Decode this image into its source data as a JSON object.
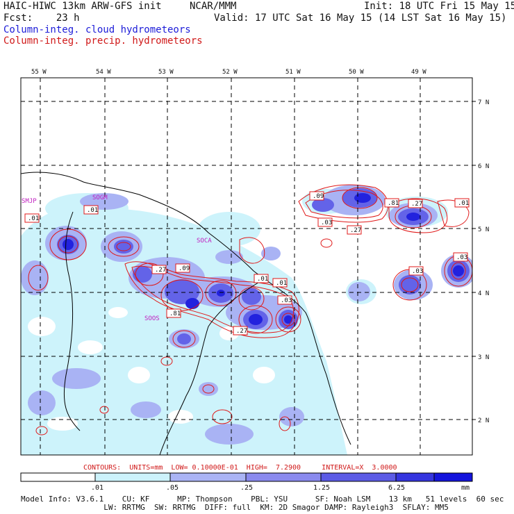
{
  "header": {
    "model_title": "HAIC-HIWC 13km ARW-GFS init",
    "org": "NCAR/MMM",
    "init": "Init: 18 UTC Fri 15 May 15",
    "fcst": "Fcst:    23 h",
    "valid": "Valid: 17 UTC Sat 16 May 15 (14 LST Sat 16 May 15)",
    "field1": "Column-integ. cloud hydrometeors",
    "field2": "Column-integ. precip. hydrometeors"
  },
  "axes": {
    "lon_labels": [
      "55 W",
      "54 W",
      "53 W",
      "52 W",
      "51 W",
      "50 W",
      "49 W"
    ],
    "lat_labels": [
      "7 N",
      "6 N",
      "5 N",
      "4 N",
      "3 N",
      "2 N"
    ]
  },
  "stations": [
    "SMJP",
    "SOGM",
    "SOCA",
    "SOOS"
  ],
  "contour_labels": [
    ".09",
    ".81",
    ".27",
    ".01",
    ".03",
    ".27",
    ".01",
    ".27",
    ".09",
    ".01",
    ".01",
    ".03",
    ".81",
    ".27",
    ".03",
    ".01",
    ".03"
  ],
  "contour_info": "CONTOURS:  UNITS=mm  LOW= 0.10000E-01  HIGH=  7.2900     INTERVAL=X  3.0000",
  "colorbar": {
    "labels": [
      ".01",
      ".05",
      ".25",
      "1.25",
      "6.25"
    ],
    "unit": "mm",
    "colors": [
      "#ffffff",
      "#ccf2fb",
      "#aab4f5",
      "#8a8aee",
      "#5c5ce6",
      "#3535df",
      "#1414dc"
    ]
  },
  "footer": {
    "line1": "Model Info: V3.6.1    CU: KF      MP: Thompson    PBL: YSU      SF: Noah LSM    13 km   51 levels  60 sec",
    "line2": "                  LW: RRTMG  SW: RRTMG  DIFF: full  KM: 2D Smagor DAMP: Rayleigh3  SFLAY: MM5"
  }
}
